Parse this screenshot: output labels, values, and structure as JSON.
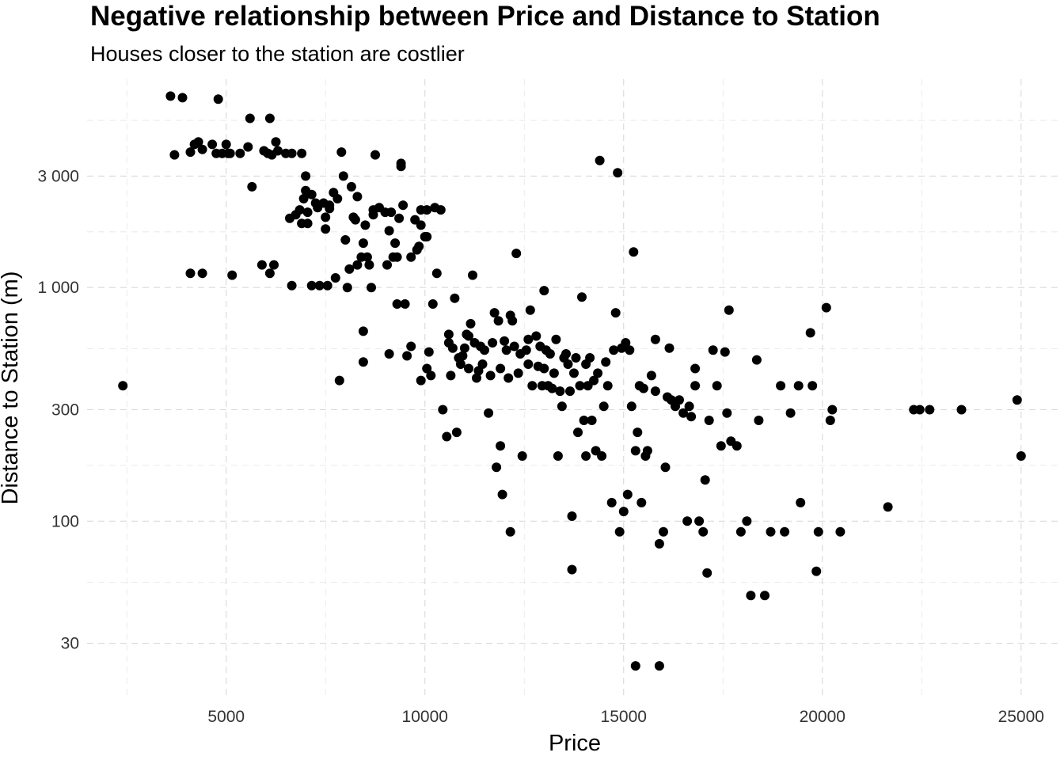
{
  "chart_data": {
    "type": "scatter",
    "title": "Negative relationship between Price and Distance to Station",
    "subtitle": "Houses closer to the station are costlier",
    "xlabel": "Price",
    "ylabel": "Distance to Station (m)",
    "xlim": [
      1500,
      26000
    ],
    "ylim": [
      18,
      7800
    ],
    "y_scale": "log10",
    "x_ticks": [
      5000,
      10000,
      15000,
      20000,
      25000
    ],
    "x_tick_labels": [
      "5000",
      "10000",
      "15000",
      "20000",
      "25000"
    ],
    "y_ticks": [
      30,
      100,
      300,
      1000,
      3000
    ],
    "y_tick_labels": [
      "30",
      "100",
      "300",
      "1 000",
      "3 000"
    ],
    "grid": true,
    "marker_color": "#000000",
    "points": [
      [
        2400,
        380
      ],
      [
        3600,
        6600
      ],
      [
        3700,
        3700
      ],
      [
        3900,
        6500
      ],
      [
        4100,
        1150
      ],
      [
        4100,
        3800
      ],
      [
        4200,
        4100
      ],
      [
        4300,
        4200
      ],
      [
        4400,
        1150
      ],
      [
        4400,
        3900
      ],
      [
        4650,
        4100
      ],
      [
        4750,
        3750
      ],
      [
        4800,
        6400
      ],
      [
        4900,
        3750
      ],
      [
        5000,
        4100
      ],
      [
        5050,
        3750
      ],
      [
        5100,
        3750
      ],
      [
        5150,
        1130
      ],
      [
        5350,
        3750
      ],
      [
        5550,
        4000
      ],
      [
        5600,
        5300
      ],
      [
        5650,
        2700
      ],
      [
        5900,
        1250
      ],
      [
        5950,
        3850
      ],
      [
        6050,
        3750
      ],
      [
        6100,
        5300
      ],
      [
        6100,
        1150
      ],
      [
        6150,
        3700
      ],
      [
        6200,
        1250
      ],
      [
        6250,
        4200
      ],
      [
        6300,
        3850
      ],
      [
        6500,
        3750
      ],
      [
        6650,
        3750
      ],
      [
        6600,
        1980
      ],
      [
        6650,
        1020
      ],
      [
        6750,
        2050
      ],
      [
        6850,
        2150
      ],
      [
        6900,
        3750
      ],
      [
        6900,
        1880
      ],
      [
        7000,
        2600
      ],
      [
        6950,
        2400
      ],
      [
        7000,
        3000
      ],
      [
        7050,
        2100
      ],
      [
        7050,
        1880
      ],
      [
        7150,
        1020
      ],
      [
        7150,
        2500
      ],
      [
        7250,
        2300
      ],
      [
        7300,
        2200
      ],
      [
        7350,
        1020
      ],
      [
        7450,
        2300
      ],
      [
        7500,
        1780
      ],
      [
        7500,
        2000
      ],
      [
        7550,
        1020
      ],
      [
        7600,
        2250
      ],
      [
        7600,
        2180
      ],
      [
        7700,
        2550
      ],
      [
        7750,
        1100
      ],
      [
        7800,
        2400
      ],
      [
        7850,
        400
      ],
      [
        7900,
        3800
      ],
      [
        7950,
        3000
      ],
      [
        8000,
        1600
      ],
      [
        8050,
        1000
      ],
      [
        8100,
        1200
      ],
      [
        8150,
        2700
      ],
      [
        8200,
        2000
      ],
      [
        8250,
        1950
      ],
      [
        8300,
        2450
      ],
      [
        8300,
        1250
      ],
      [
        8400,
        1350
      ],
      [
        8450,
        480
      ],
      [
        8450,
        650
      ],
      [
        8450,
        1550
      ],
      [
        8500,
        1850
      ],
      [
        8550,
        1350
      ],
      [
        8600,
        1250
      ],
      [
        8700,
        2150
      ],
      [
        8700,
        2050
      ],
      [
        8750,
        3700
      ],
      [
        8850,
        2200
      ],
      [
        9000,
        2100
      ],
      [
        9050,
        1250
      ],
      [
        9100,
        520
      ],
      [
        9100,
        1750
      ],
      [
        9150,
        2100
      ],
      [
        9200,
        1350
      ],
      [
        9250,
        1550
      ],
      [
        9300,
        1350
      ],
      [
        9300,
        850
      ],
      [
        9350,
        1980
      ],
      [
        9400,
        3400
      ],
      [
        9400,
        3300
      ],
      [
        9450,
        2250
      ],
      [
        9500,
        850
      ],
      [
        9550,
        510
      ],
      [
        9650,
        1350
      ],
      [
        9650,
        560
      ],
      [
        9750,
        1950
      ],
      [
        9800,
        1450
      ],
      [
        9850,
        1500
      ],
      [
        9900,
        2150
      ],
      [
        9900,
        1850
      ],
      [
        10000,
        1650
      ],
      [
        10050,
        1650
      ],
      [
        10050,
        2150
      ],
      [
        10050,
        450
      ],
      [
        10100,
        530
      ],
      [
        10150,
        420
      ],
      [
        10200,
        850
      ],
      [
        10250,
        2200
      ],
      [
        10300,
        1150
      ],
      [
        10400,
        2150
      ],
      [
        10450,
        300
      ],
      [
        10550,
        230
      ],
      [
        10600,
        580
      ],
      [
        10650,
        420
      ],
      [
        10700,
        550
      ],
      [
        10750,
        900
      ],
      [
        10800,
        240
      ],
      [
        10850,
        500
      ],
      [
        10900,
        470
      ],
      [
        10950,
        510
      ],
      [
        11000,
        550
      ],
      [
        11050,
        630
      ],
      [
        11100,
        450
      ],
      [
        11150,
        700
      ],
      [
        11200,
        1130
      ],
      [
        11250,
        580
      ],
      [
        11300,
        410
      ],
      [
        11350,
        440
      ],
      [
        11400,
        560
      ],
      [
        11450,
        470
      ],
      [
        11500,
        540
      ],
      [
        11600,
        290
      ],
      [
        11650,
        420
      ],
      [
        11700,
        580
      ],
      [
        11750,
        780
      ],
      [
        11800,
        170
      ],
      [
        11850,
        720
      ],
      [
        11900,
        210
      ],
      [
        11950,
        130
      ],
      [
        12000,
        590
      ],
      [
        12050,
        540
      ],
      [
        12100,
        410
      ],
      [
        12150,
        760
      ],
      [
        12200,
        720
      ],
      [
        12250,
        560
      ],
      [
        12300,
        1400
      ],
      [
        12350,
        430
      ],
      [
        12400,
        520
      ],
      [
        12450,
        190
      ],
      [
        12550,
        540
      ],
      [
        12600,
        600
      ],
      [
        12650,
        800
      ],
      [
        12700,
        380
      ],
      [
        12800,
        620
      ],
      [
        12850,
        460
      ],
      [
        12900,
        560
      ],
      [
        12950,
        380
      ],
      [
        13000,
        970
      ],
      [
        13050,
        540
      ],
      [
        13100,
        380
      ],
      [
        13150,
        520
      ],
      [
        13200,
        370
      ],
      [
        13250,
        430
      ],
      [
        13300,
        600
      ],
      [
        13350,
        190
      ],
      [
        13400,
        360
      ],
      [
        13450,
        310
      ],
      [
        13500,
        500
      ],
      [
        13550,
        520
      ],
      [
        13600,
        470
      ],
      [
        13650,
        360
      ],
      [
        13700,
        105
      ],
      [
        13750,
        430
      ],
      [
        13800,
        500
      ],
      [
        13850,
        240
      ],
      [
        13900,
        380
      ],
      [
        13950,
        910
      ],
      [
        14000,
        270
      ],
      [
        14050,
        190
      ],
      [
        14100,
        380
      ],
      [
        14150,
        500
      ],
      [
        14200,
        270
      ],
      [
        14250,
        400
      ],
      [
        14300,
        200
      ],
      [
        14350,
        430
      ],
      [
        14400,
        3500
      ],
      [
        14450,
        190
      ],
      [
        14500,
        310
      ],
      [
        14550,
        480
      ],
      [
        14600,
        380
      ],
      [
        14700,
        120
      ],
      [
        14750,
        540
      ],
      [
        14800,
        780
      ],
      [
        14850,
        3100
      ],
      [
        14900,
        90
      ],
      [
        14950,
        550
      ],
      [
        15000,
        110
      ],
      [
        15050,
        580
      ],
      [
        15100,
        130
      ],
      [
        15150,
        540
      ],
      [
        15200,
        310
      ],
      [
        15250,
        1420
      ],
      [
        15300,
        200
      ],
      [
        15350,
        240
      ],
      [
        15400,
        380
      ],
      [
        15450,
        120
      ],
      [
        15500,
        370
      ],
      [
        15550,
        190
      ],
      [
        15600,
        200
      ],
      [
        15700,
        420
      ],
      [
        15800,
        360
      ],
      [
        15900,
        80
      ],
      [
        16000,
        90
      ],
      [
        16050,
        170
      ],
      [
        16100,
        340
      ],
      [
        16150,
        550
      ],
      [
        16200,
        330
      ],
      [
        16300,
        310
      ],
      [
        16400,
        330
      ],
      [
        16500,
        290
      ],
      [
        16600,
        100
      ],
      [
        16650,
        310
      ],
      [
        16700,
        280
      ],
      [
        16800,
        380
      ],
      [
        16900,
        100
      ],
      [
        17000,
        90
      ],
      [
        17050,
        150
      ],
      [
        17100,
        60
      ],
      [
        17150,
        270
      ],
      [
        17250,
        540
      ],
      [
        17350,
        380
      ],
      [
        17450,
        210
      ],
      [
        17550,
        530
      ],
      [
        17600,
        290
      ],
      [
        17650,
        800
      ],
      [
        17700,
        220
      ],
      [
        17850,
        210
      ],
      [
        17950,
        90
      ],
      [
        18100,
        100
      ],
      [
        18200,
        48
      ],
      [
        18350,
        490
      ],
      [
        18400,
        270
      ],
      [
        18550,
        48
      ],
      [
        18700,
        90
      ],
      [
        18950,
        380
      ],
      [
        19050,
        90
      ],
      [
        19200,
        290
      ],
      [
        19400,
        380
      ],
      [
        19450,
        120
      ],
      [
        19700,
        640
      ],
      [
        19750,
        380
      ],
      [
        19850,
        61
      ],
      [
        19900,
        90
      ],
      [
        20100,
        820
      ],
      [
        20200,
        270
      ],
      [
        20250,
        300
      ],
      [
        20450,
        90
      ],
      [
        21650,
        115
      ],
      [
        22300,
        300
      ],
      [
        22450,
        300
      ],
      [
        22700,
        300
      ],
      [
        23500,
        300
      ],
      [
        24900,
        330
      ],
      [
        25000,
        190
      ],
      [
        15300,
        24
      ],
      [
        15900,
        24
      ],
      [
        13700,
        62
      ],
      [
        12150,
        90
      ],
      [
        8650,
        1000
      ],
      [
        9900,
        400
      ],
      [
        11100,
        620
      ],
      [
        12600,
        470
      ],
      [
        14050,
        470
      ],
      [
        13000,
        450
      ],
      [
        11900,
        450
      ],
      [
        10600,
        630
      ],
      [
        15800,
        600
      ],
      [
        16800,
        450
      ]
    ]
  }
}
